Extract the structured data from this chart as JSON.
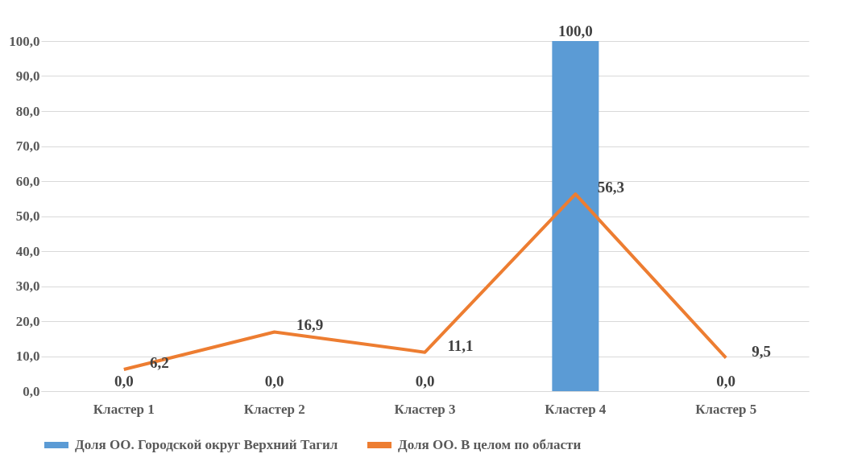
{
  "chart_data": {
    "type": "bar",
    "categories": [
      "Кластер 1",
      "Кластер 2",
      "Кластер 3",
      "Кластер 4",
      "Кластер 5"
    ],
    "series": [
      {
        "name": "Доля ОО. Городской округ Верхний Тагил",
        "type": "bar",
        "color": "#5b9bd5",
        "values": [
          0,
          0,
          0,
          100,
          0
        ],
        "value_labels": [
          "0,0",
          "0,0",
          "0,0",
          "100,0",
          "0,0"
        ]
      },
      {
        "name": "Доля ОО. В целом по области",
        "type": "line",
        "color": "#ed7d31",
        "values": [
          6.2,
          16.9,
          11.1,
          56.3,
          9.5
        ],
        "value_labels": [
          "6,2",
          "16,9",
          "11,1",
          "56,3",
          "9,5"
        ]
      }
    ],
    "ylim": [
      0,
      100
    ],
    "yticks": [
      {
        "value": 0,
        "label": "0,0"
      },
      {
        "value": 10,
        "label": "10,0"
      },
      {
        "value": 20,
        "label": "20,0"
      },
      {
        "value": 30,
        "label": "30,0"
      },
      {
        "value": 40,
        "label": "40,0"
      },
      {
        "value": 50,
        "label": "50,0"
      },
      {
        "value": 60,
        "label": "60,0"
      },
      {
        "value": 70,
        "label": "70,0"
      },
      {
        "value": 80,
        "label": "80,0"
      },
      {
        "value": 90,
        "label": "90,0"
      },
      {
        "value": 100,
        "label": "100,0"
      }
    ],
    "grid": "y",
    "legend": "bottom",
    "marker": "none",
    "line_style": "solid"
  }
}
